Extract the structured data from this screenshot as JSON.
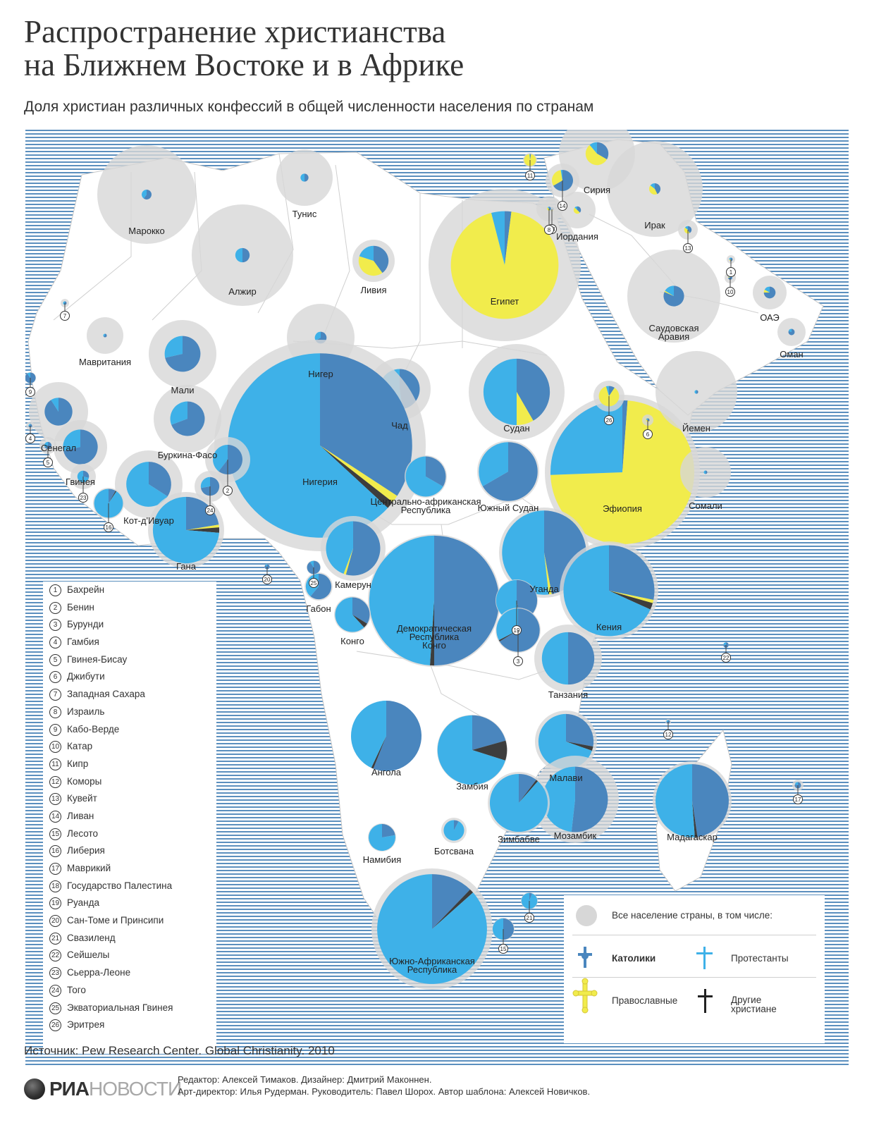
{
  "title_line1": "Распространение христианства",
  "title_line2": "на Ближнем Востоке и в Африке",
  "subtitle": "Доля христиан различных конфессий в общей численности населения по странам",
  "colors": {
    "catholic": "#4a86be",
    "protestant": "#3eb1e8",
    "orthodox": "#f1ec4c",
    "other": "#3d3d3d",
    "population": "#d7d7d7",
    "sea_stripe": "#5b8fbe",
    "land": "#ffffff"
  },
  "countries": [
    {
      "label": "Марокко",
      "pop": 70,
      "c": 0.006,
      "p": 0.004,
      "o": 0,
      "x": 0
    },
    {
      "label": "Алжир",
      "pop": 72,
      "c": 0.01,
      "p": 0.01,
      "o": 0,
      "x": 0
    },
    {
      "label": "Тунис",
      "pop": 40,
      "c": 0.01,
      "p": 0.01,
      "o": 0,
      "x": 0
    },
    {
      "label": "Ливия",
      "pop": 30,
      "c": 0.2,
      "p": 0.1,
      "o": 0.2,
      "x": 0
    },
    {
      "label": "Египет",
      "pop": 108,
      "c": 0.01,
      "p": 0.02,
      "o": 0.47,
      "x": 0
    },
    {
      "label": "Мавритания",
      "pop": 26,
      "c": 0.002,
      "p": 0.001,
      "o": 0,
      "x": 0
    },
    {
      "label": "Мали",
      "pop": 48,
      "c": 0.2,
      "p": 0.08,
      "o": 0,
      "x": 0
    },
    {
      "label": "Нигер",
      "pop": 48,
      "c": 0.02,
      "p": 0.01,
      "o": 0,
      "x": 0
    },
    {
      "label": "Чад",
      "pop": 44,
      "c": 0.2,
      "p": 0.22,
      "o": 0,
      "x": 0
    },
    {
      "label": "Судан",
      "pop": 68,
      "c": 0.2,
      "p": 0.24,
      "o": 0.04,
      "x": 0
    },
    {
      "label": "Сенегал",
      "pop": 42,
      "c": 0.2,
      "p": 0.02,
      "o": 0,
      "x": 0
    },
    {
      "label": "Гвинея",
      "pop": 38,
      "c": 0.3,
      "p": 0.12,
      "o": 0,
      "x": 0
    },
    {
      "label": "Буркина-Фасо",
      "pop": 48,
      "c": 0.18,
      "p": 0.08,
      "o": 0,
      "x": 0
    },
    {
      "label": "Кот-д'Ивуар",
      "pop": 48,
      "c": 0.15,
      "p": 0.29,
      "o": 0,
      "x": 0
    },
    {
      "label": "Гана",
      "pop": 54,
      "c": 0.17,
      "p": 0.56,
      "o": 0.01,
      "x": 0.02
    },
    {
      "label": "Нигерия",
      "pop": 150,
      "c": 0.26,
      "p": 0.48,
      "o": 0.01,
      "x": 0.01
    },
    {
      "label": "Камерун",
      "pop": 46,
      "c": 0.38,
      "p": 0.31,
      "o": 0.01,
      "x": 0
    },
    {
      "label": "Центрально-африканская Республика",
      "pop": 30,
      "c": 0.3,
      "p": 0.6,
      "o": 0,
      "x": 0
    },
    {
      "label": "Южный Судан",
      "pop": 44,
      "c": 0.6,
      "p": 0.3,
      "o": 0,
      "x": 0
    },
    {
      "label": "Эфиопия",
      "pop": 110,
      "c": 0.01,
      "p": 0.22,
      "o": 0.63,
      "x": 0
    },
    {
      "label": "Сомали",
      "pop": 36,
      "c": 0.001,
      "p": 0.001,
      "o": 0,
      "x": 0
    },
    {
      "label": "Уганда",
      "pop": 64,
      "c": 0.41,
      "p": 0.45,
      "o": 0.01,
      "x": 0
    },
    {
      "label": "Кения",
      "pop": 70,
      "c": 0.24,
      "p": 0.58,
      "o": 0.01,
      "x": 0.02
    },
    {
      "label": "Демократическая Республика Конго",
      "pop": 94,
      "c": 0.48,
      "p": 0.47,
      "o": 0,
      "x": 0.01
    },
    {
      "label": "Габон",
      "pop": 20,
      "c": 0.5,
      "p": 0.32,
      "o": 0,
      "x": 0
    },
    {
      "label": "Конго",
      "pop": 26,
      "c": 0.3,
      "p": 0.55,
      "o": 0,
      "x": 0.04
    },
    {
      "label": "Танзания",
      "pop": 48,
      "c": 0.3,
      "p": 0.3,
      "o": 0,
      "x": 0
    },
    {
      "label": "Ангола",
      "pop": 50,
      "c": 0.56,
      "p": 0.43,
      "o": 0,
      "x": 0.01
    },
    {
      "label": "Замбия",
      "pop": 50,
      "c": 0.2,
      "p": 0.68,
      "o": 0,
      "x": 0.09
    },
    {
      "label": "Малави",
      "pop": 44,
      "c": 0.22,
      "p": 0.55,
      "o": 0,
      "x": 0.02
    },
    {
      "label": "Мозамбик",
      "pop": 62,
      "c": 0.29,
      "p": 0.27,
      "o": 0,
      "x": 0
    },
    {
      "label": "Зимбабве",
      "pop": 44,
      "c": 0.09,
      "p": 0.77,
      "o": 0,
      "x": 0.01
    },
    {
      "label": "Намибия",
      "pop": 20,
      "c": 0.2,
      "p": 0.7,
      "o": 0,
      "x": 0
    },
    {
      "label": "Ботсвана",
      "pop": 18,
      "c": 0.05,
      "p": 0.6,
      "o": 0,
      "x": 0
    },
    {
      "label": "Мадагаскар",
      "pop": 56,
      "c": 0.41,
      "p": 0.44,
      "o": 0,
      "x": 0.01
    },
    {
      "label": "Южно-Африканская Республика",
      "pop": 86,
      "c": 0.1,
      "p": 0.71,
      "o": 0,
      "x": 0.01
    },
    {
      "label": "Сирия",
      "pop": 54,
      "c": 0.03,
      "p": 0.01,
      "o": 0.05,
      "x": 0
    },
    {
      "label": "Ирак",
      "pop": 68,
      "c": 0.006,
      "p": 0.002,
      "o": 0.006,
      "x": 0
    },
    {
      "label": "Иордания",
      "pop": 26,
      "c": 0.015,
      "p": 0.005,
      "o": 0.02,
      "x": 0
    },
    {
      "label": "Саудовская Аравия",
      "pop": 66,
      "c": 0.04,
      "p": 0.008,
      "o": 0.001,
      "x": 0
    },
    {
      "label": "ОАЭ",
      "pop": 24,
      "c": 0.09,
      "p": 0.02,
      "o": 0.01,
      "x": 0
    },
    {
      "label": "Оман",
      "pop": 20,
      "c": 0.04,
      "p": 0.01,
      "o": 0,
      "x": 0
    },
    {
      "label": "Йемен",
      "pop": 58,
      "c": 0.001,
      "p": 0.001,
      "o": 0,
      "x": 0
    },
    {
      "label": "",
      "num": "26",
      "pop": 22,
      "c": 0.04,
      "p": 0.02,
      "o": 0.37,
      "x": 0
    },
    {
      "label": "",
      "num": "6",
      "pop": 8,
      "c": 0.02,
      "p": 0.01,
      "o": 0.02,
      "x": 0
    },
    {
      "label": "",
      "num": "2",
      "pop": 32,
      "c": 0.26,
      "p": 0.17,
      "o": 0,
      "x": 0
    },
    {
      "label": "",
      "num": "24",
      "pop": 22,
      "c": 0.26,
      "p": 0.1,
      "o": 0,
      "x": 0
    },
    {
      "label": "",
      "num": "23",
      "pop": 18,
      "c": 0.06,
      "p": 0.15,
      "o": 0,
      "x": 0
    },
    {
      "label": "",
      "num": "16",
      "pop": 22,
      "c": 0.07,
      "p": 0.78,
      "o": 0,
      "x": 0.01
    },
    {
      "label": "",
      "num": "19",
      "pop": 30,
      "c": 0.44,
      "p": 0.49,
      "o": 0,
      "x": 0.01
    },
    {
      "label": "",
      "num": "3",
      "pop": 32,
      "c": 0.61,
      "p": 0.3,
      "o": 0,
      "x": 0.01
    },
    {
      "label": "",
      "num": "25",
      "pop": 10,
      "c": 0.8,
      "p": 0.08,
      "o": 0,
      "x": 0
    },
    {
      "label": "",
      "num": "20",
      "pop": 4,
      "c": 0.7,
      "p": 0.1,
      "o": 0,
      "x": 0
    },
    {
      "label": "",
      "num": "9",
      "pop": 8,
      "c": 0.8,
      "p": 0.09,
      "o": 0,
      "x": 0
    },
    {
      "label": "",
      "num": "4",
      "pop": 6,
      "c": 0.03,
      "p": 0.01,
      "o": 0,
      "x": 0
    },
    {
      "label": "",
      "num": "5",
      "pop": 12,
      "c": 0.12,
      "p": 0.06,
      "o": 0,
      "x": 0
    },
    {
      "label": "",
      "num": "7",
      "pop": 6,
      "c": 0.001,
      "p": 0.001,
      "o": 0,
      "x": 0
    },
    {
      "label": "",
      "num": "11",
      "pop": 10,
      "c": 0.02,
      "p": 0.01,
      "o": 0.7,
      "x": 0
    },
    {
      "label": "",
      "num": "14",
      "pop": 24,
      "c": 0.26,
      "p": 0.01,
      "o": 0.12,
      "x": 0
    },
    {
      "label": "",
      "num": "18",
      "pop": 16,
      "c": 0.01,
      "p": 0.003,
      "o": 0.02,
      "x": 0
    },
    {
      "label": "",
      "num": "8",
      "pop": 18,
      "c": 0.01,
      "p": 0.003,
      "o": 0.01,
      "x": 0
    },
    {
      "label": "",
      "num": "13",
      "pop": 14,
      "c": 0.06,
      "p": 0.02,
      "o": 0.06,
      "x": 0
    },
    {
      "label": "",
      "num": "1",
      "pop": 6,
      "c": 0.08,
      "p": 0.04,
      "o": 0.02,
      "x": 0
    },
    {
      "label": "",
      "num": "10",
      "pop": 8,
      "c": 0.1,
      "p": 0.02,
      "o": 0.01,
      "x": 0
    },
    {
      "label": "",
      "num": "22",
      "pop": 4,
      "c": 0.7,
      "p": 0.2,
      "o": 0,
      "x": 0
    },
    {
      "label": "",
      "num": "12",
      "pop": 4,
      "c": 0.003,
      "p": 0.001,
      "o": 0,
      "x": 0
    },
    {
      "label": "",
      "num": "17",
      "pop": 8,
      "c": 0.25,
      "p": 0.06,
      "o": 0,
      "x": 0
    },
    {
      "label": "",
      "num": "21",
      "pop": 12,
      "c": 0.05,
      "p": 0.83,
      "o": 0,
      "x": 0
    },
    {
      "label": "",
      "num": "15",
      "pop": 16,
      "c": 0.45,
      "p": 0.44,
      "o": 0,
      "x": 0
    }
  ],
  "legend_list": [
    {
      "num": "1",
      "name": "Бахрейн"
    },
    {
      "num": "2",
      "name": "Бенин"
    },
    {
      "num": "3",
      "name": "Бурунди"
    },
    {
      "num": "4",
      "name": "Гамбия"
    },
    {
      "num": "5",
      "name": "Гвинея-Бисау"
    },
    {
      "num": "6",
      "name": "Джибути"
    },
    {
      "num": "7",
      "name": "Западная Сахара"
    },
    {
      "num": "8",
      "name": "Израиль"
    },
    {
      "num": "9",
      "name": "Кабо-Верде"
    },
    {
      "num": "10",
      "name": "Катар"
    },
    {
      "num": "11",
      "name": "Кипр"
    },
    {
      "num": "12",
      "name": "Коморы"
    },
    {
      "num": "13",
      "name": "Кувейт"
    },
    {
      "num": "14",
      "name": "Ливан"
    },
    {
      "num": "15",
      "name": "Лесото"
    },
    {
      "num": "16",
      "name": "Либерия"
    },
    {
      "num": "17",
      "name": "Маврикий"
    },
    {
      "num": "18",
      "name": "Государство Палестина"
    },
    {
      "num": "19",
      "name": "Руанда"
    },
    {
      "num": "20",
      "name": "Сан-Томе и Принсипи"
    },
    {
      "num": "21",
      "name": "Свазиленд"
    },
    {
      "num": "22",
      "name": "Сейшелы"
    },
    {
      "num": "23",
      "name": "Сьерра-Леоне"
    },
    {
      "num": "24",
      "name": "Того"
    },
    {
      "num": "25",
      "name": "Экваториальная Гвинея"
    },
    {
      "num": "26",
      "name": "Эритрея"
    }
  ],
  "key": {
    "population": "Все население страны, в том числе:",
    "catholic": "Католики",
    "protestant": "Протестанты",
    "orthodox": "Православные",
    "other_line1": "Другие",
    "other_line2": "христиане"
  },
  "source": "Источник: Pew Research Center. Global Christianity. 2010",
  "logo_bold": "РИА",
  "logo_light": "НОВОСТИ",
  "credits_line1": "Редактор: Алексей Тимаков. Дизайнер: Дмитрий Маконнен.",
  "credits_line2": "Арт-директор: Илья Рудерман. Руководитель: Павел Шорох. Автор шаблона: Алексей Новичков."
}
